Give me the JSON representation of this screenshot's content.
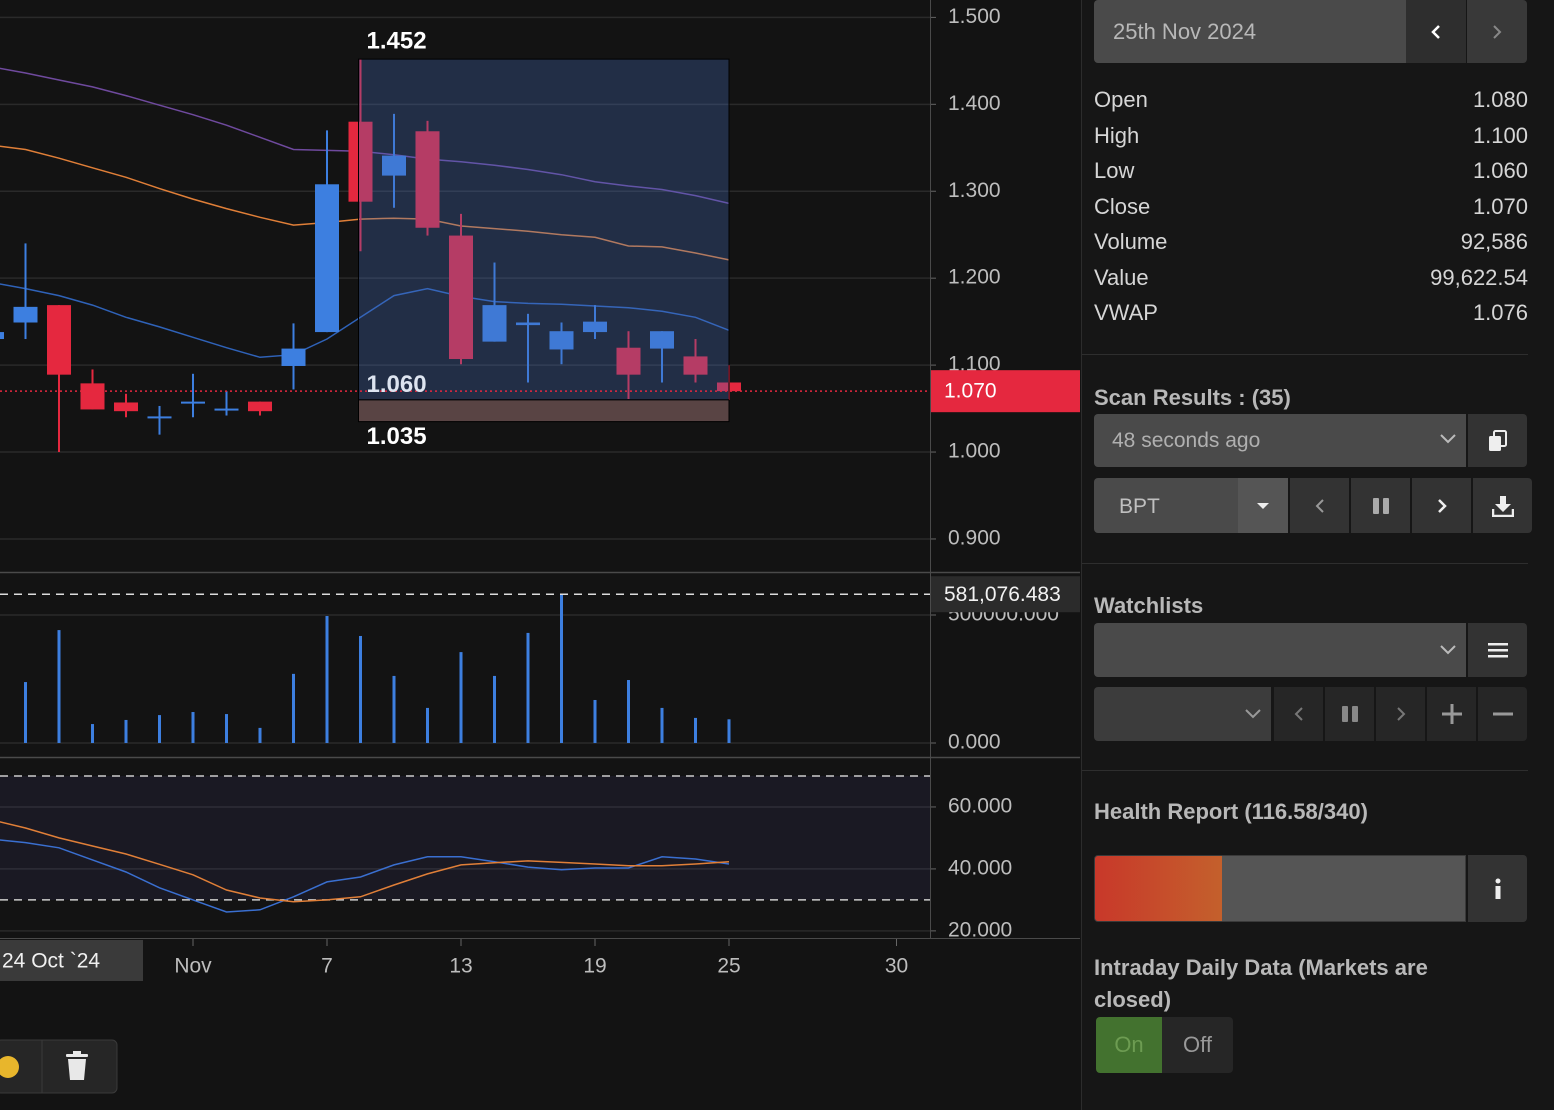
{
  "chart_data": [
    {
      "type": "candlestick",
      "categories": [
        null,
        null,
        null,
        null,
        null,
        null,
        "Nov",
        null,
        null,
        null,
        "7",
        null,
        null,
        null,
        "13",
        null,
        null,
        null,
        "19",
        null,
        null,
        null,
        "25",
        null,
        null,
        null,
        null,
        "30"
      ],
      "x_label": "24 Oct `24",
      "open": [
        1.13,
        1.149,
        1.169,
        1.079,
        1.057,
        1.039,
        1.056,
        1.048,
        1.058,
        1.099,
        1.138,
        1.38,
        1.318,
        1.369,
        1.249,
        1.127,
        1.146,
        1.118,
        1.138,
        1.12,
        1.119,
        1.11,
        1.08,
        null,
        null,
        null,
        null,
        null
      ],
      "high": [
        1.14,
        1.24,
        1.169,
        1.095,
        1.067,
        1.053,
        1.09,
        1.07,
        1.058,
        1.148,
        1.37,
        1.452,
        1.389,
        1.381,
        1.274,
        1.218,
        1.159,
        1.149,
        1.169,
        1.139,
        1.139,
        1.13,
        1.1,
        null,
        null,
        null,
        null,
        null
      ],
      "low": [
        1.128,
        1.13,
        1.0,
        1.049,
        1.04,
        1.02,
        1.04,
        1.042,
        1.042,
        1.072,
        1.138,
        1.231,
        1.281,
        1.249,
        1.101,
        1.127,
        1.08,
        1.101,
        1.13,
        1.061,
        1.08,
        1.08,
        1.06,
        null,
        null,
        null,
        null,
        null
      ],
      "close": [
        1.138,
        1.167,
        1.089,
        1.049,
        1.047,
        1.041,
        1.058,
        1.05,
        1.047,
        1.119,
        1.308,
        1.288,
        1.341,
        1.258,
        1.107,
        1.169,
        1.149,
        1.139,
        1.15,
        1.089,
        1.139,
        1.089,
        1.07,
        null,
        null,
        null,
        null,
        null
      ],
      "up_color": "#3d7fe0",
      "down_color": "#e5283f",
      "series": [
        {
          "color": "#6f4a9e",
          "values": [
            1.443,
            1.436,
            1.428,
            1.42,
            1.41,
            1.399,
            1.388,
            1.376,
            1.362,
            1.348,
            1.347,
            1.346,
            1.342,
            1.337,
            1.334,
            1.33,
            1.325,
            1.319,
            1.311,
            1.306,
            1.302,
            1.295,
            1.286,
            null,
            null,
            null,
            null,
            null
          ]
        },
        {
          "color": "#e07f38",
          "values": [
            1.353,
            1.348,
            1.338,
            1.327,
            1.316,
            1.303,
            1.291,
            1.28,
            1.27,
            1.261,
            1.264,
            1.268,
            1.269,
            1.268,
            1.26,
            1.257,
            1.254,
            1.25,
            1.247,
            1.237,
            1.236,
            1.229,
            1.221,
            null,
            null,
            null,
            null,
            null
          ]
        },
        {
          "color": "#2f62b8",
          "values": [
            1.195,
            1.188,
            1.18,
            1.169,
            1.155,
            1.144,
            1.132,
            1.12,
            1.109,
            1.112,
            1.13,
            1.155,
            1.18,
            1.188,
            1.179,
            1.173,
            1.171,
            1.17,
            1.168,
            1.166,
            1.162,
            1.155,
            1.14,
            null,
            null,
            null,
            null,
            null
          ]
        }
      ],
      "ylim": [
        0.862,
        1.52
      ],
      "yticks": [
        {
          "value": 0.9,
          "label": "0.900"
        },
        {
          "value": 1,
          "label": "1.000"
        },
        {
          "value": 1.1,
          "label": "1.100"
        },
        {
          "value": 1.2,
          "label": "1.200"
        },
        {
          "value": 1.3,
          "label": "1.300"
        },
        {
          "value": 1.4,
          "label": "1.400"
        },
        {
          "value": 1.5,
          "label": "1.500"
        }
      ],
      "grid": true,
      "last_price": {
        "value": 1.07,
        "label": "1.070"
      },
      "measure": {
        "high": 1.452,
        "mid": {
          "value": 1.06,
          "label": "1.060"
        },
        "low": 1.035
      }
    },
    {
      "type": "bar",
      "values": [
        null,
        238000,
        441000,
        74000,
        90000,
        109000,
        121000,
        113000,
        59000,
        270000,
        496000,
        418000,
        262000,
        137000,
        355000,
        262000,
        430000,
        581076,
        168000,
        246000,
        137000,
        98000,
        92586,
        null,
        null,
        null,
        null,
        null
      ],
      "color": "#3d7fe0",
      "ylim": [
        -54700,
        664000
      ],
      "yticks": [
        {
          "value": 0,
          "label": "0.000"
        },
        {
          "value": 500000,
          "label": "500000.000"
        }
      ],
      "grid": true,
      "max_line": {
        "value": 581076.483,
        "label": "581,076.483"
      }
    },
    {
      "type": "line",
      "series": [
        {
          "color": "#3a6fd0",
          "values": [
            49.6,
            48.5,
            46.8,
            42.9,
            39.0,
            33.9,
            30.0,
            26.1,
            26.8,
            31.0,
            35.8,
            37.4,
            41.3,
            43.9,
            43.9,
            42.3,
            40.6,
            39.7,
            40.3,
            40.3,
            43.9,
            43.2,
            41.6,
            null,
            null,
            null,
            null,
            null
          ]
        },
        {
          "color": "#e07f38",
          "values": [
            55.8,
            53.2,
            50.0,
            47.4,
            44.8,
            41.5,
            38.1,
            33.2,
            30.6,
            29.4,
            30.0,
            31.0,
            34.8,
            38.4,
            41.3,
            42.0,
            42.6,
            42.1,
            41.6,
            41.0,
            41.0,
            41.6,
            42.3,
            null,
            null,
            null,
            null,
            null
          ]
        }
      ],
      "ylim": [
        17.7,
        75.8
      ],
      "yticks": [
        {
          "value": 20,
          "label": "20.000"
        },
        {
          "value": 40,
          "label": "40.000"
        },
        {
          "value": 60,
          "label": "60.000"
        }
      ],
      "grid": true,
      "levels": [
        70,
        30
      ]
    }
  ],
  "sidebar": {
    "date": "25th Nov 2024",
    "stats": [
      [
        "Open",
        "1.080"
      ],
      [
        "High",
        "1.100"
      ],
      [
        "Low",
        "1.060"
      ],
      [
        "Close",
        "1.070"
      ],
      [
        "Volume",
        "92,586"
      ],
      [
        "Value",
        "99,622.54"
      ],
      [
        "VWAP",
        "1.076"
      ]
    ],
    "scan_title": "Scan Results : (35)",
    "scan_time": "48 seconds ago",
    "symbol": "BPT",
    "watchlists_title": "Watchlists",
    "health": {
      "title": "Health Report (116.58/340)",
      "score": 116.58,
      "max": 340
    },
    "intraday_title": "Intraday Daily Data (Markets are closed)",
    "toggle": [
      "On",
      "Off"
    ]
  }
}
